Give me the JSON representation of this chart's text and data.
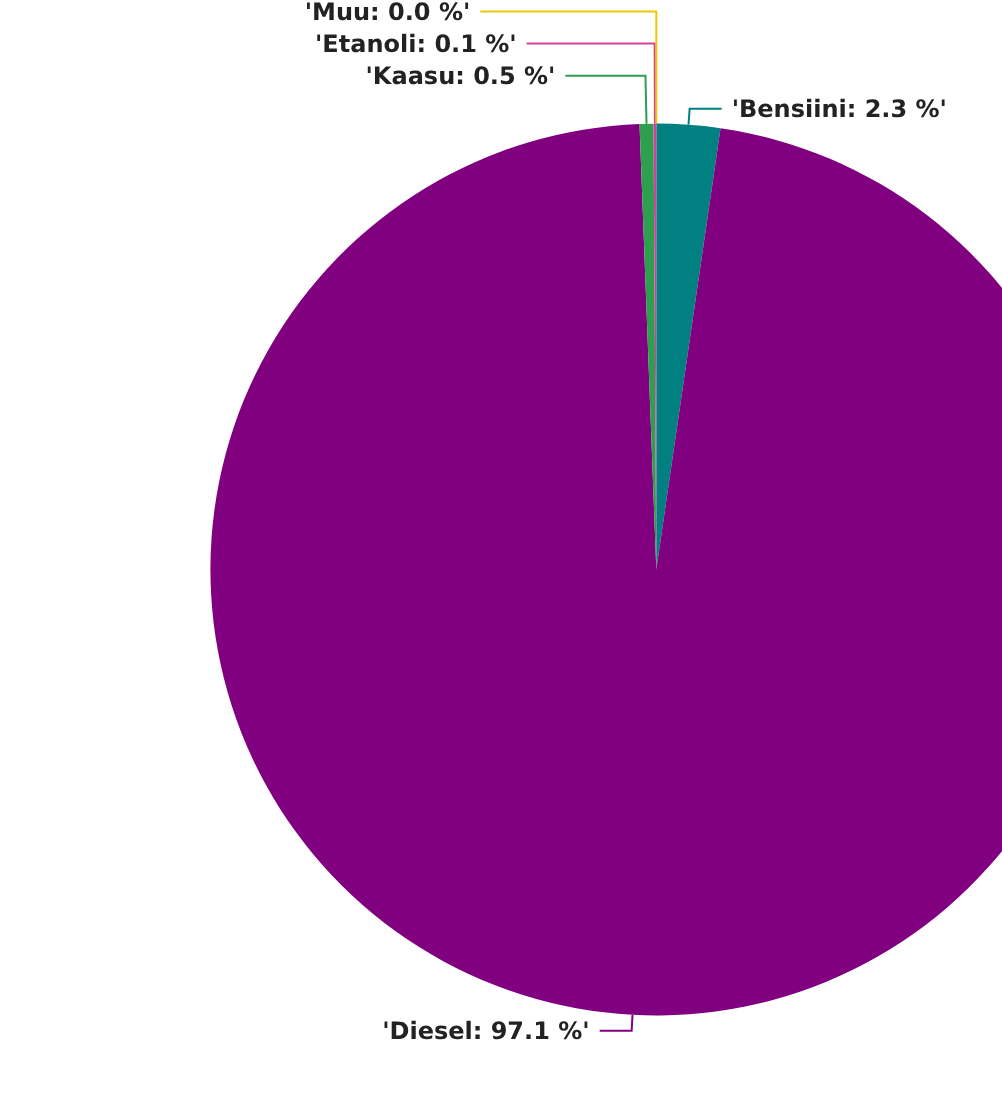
{
  "chart_data": {
    "type": "pie",
    "categories": [
      "'Bensiini: 2.3 %'",
      "'Diesel: 97.1 %'",
      "'Kaasu: 0.5 %'",
      "'Etanoli: 0.1 %'",
      "'Muu: 0.0 %'"
    ],
    "values": [
      2.3,
      97.1,
      0.5,
      0.1,
      0.0
    ],
    "colors": [
      "#008080",
      "#800080",
      "#2e9e4f",
      "#d6409a",
      "#f0c800"
    ],
    "legend": false
  }
}
